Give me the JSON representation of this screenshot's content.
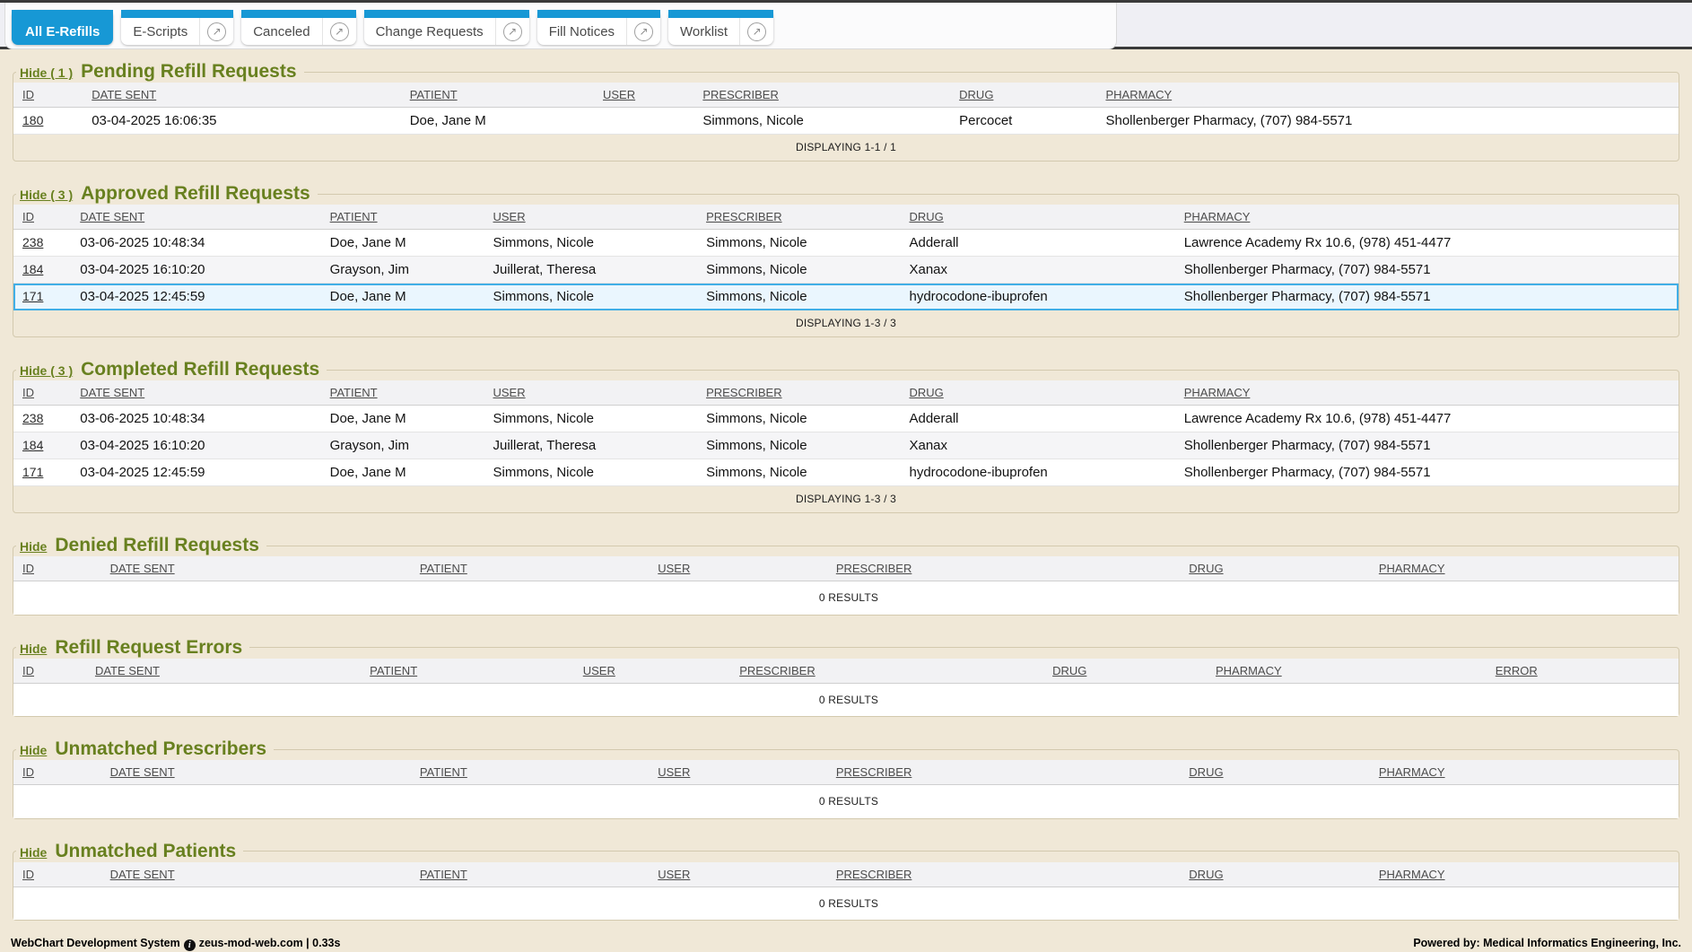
{
  "tab_bar": {
    "tabs": [
      {
        "label": "All E-Refills",
        "active": true,
        "external_icon": false
      },
      {
        "label": "E-Scripts",
        "active": false,
        "external_icon": true
      },
      {
        "label": "Canceled",
        "active": false,
        "external_icon": true
      },
      {
        "label": "Change Requests",
        "active": false,
        "external_icon": true
      },
      {
        "label": "Fill Notices",
        "active": false,
        "external_icon": true
      },
      {
        "label": "Worklist",
        "active": false,
        "external_icon": true
      }
    ],
    "external_icon_glyph": "↗"
  },
  "sections": [
    {
      "id": "pending-refill-requests",
      "hide_label": "Hide ( 1 )",
      "title": "Pending Refill Requests",
      "columns": [
        "ID",
        "DATE SENT",
        "PATIENT",
        "USER",
        "PRESCRIBER",
        "DRUG",
        "PHARMACY"
      ],
      "col_widths": [
        4.7,
        19.1,
        11.6,
        6.0,
        15.4,
        8.8,
        34.4
      ],
      "rows": [
        [
          "180",
          "03-04-2025 16:06:35",
          "Doe, Jane M",
          "",
          "Simmons, Nicole",
          "Percocet",
          "Shollenberger Pharmacy, (707) 984-5571"
        ]
      ],
      "selected_index": -1,
      "footer_text": "DISPLAYING 1-1 / 1"
    },
    {
      "id": "approved-refill-requests",
      "hide_label": "Hide ( 3 )",
      "title": "Approved Refill Requests",
      "columns": [
        "ID",
        "DATE SENT",
        "PATIENT",
        "USER",
        "PRESCRIBER",
        "DRUG",
        "PHARMACY"
      ],
      "col_widths": [
        4.0,
        15.0,
        9.8,
        12.8,
        12.2,
        16.5,
        29.7
      ],
      "rows": [
        [
          "238",
          "03-06-2025 10:48:34",
          "Doe, Jane M",
          "Simmons, Nicole",
          "Simmons, Nicole",
          "Adderall",
          "Lawrence Academy Rx 10.6, (978) 451-4477"
        ],
        [
          "184",
          "03-04-2025 16:10:20",
          "Grayson, Jim",
          "Juillerat, Theresa",
          "Simmons, Nicole",
          "Xanax",
          "Shollenberger Pharmacy, (707) 984-5571"
        ],
        [
          "171",
          "03-04-2025 12:45:59",
          "Doe, Jane M",
          "Simmons, Nicole",
          "Simmons, Nicole",
          "hydrocodone-ibuprofen",
          "Shollenberger Pharmacy, (707) 984-5571"
        ]
      ],
      "selected_index": 2,
      "footer_text": "DISPLAYING 1-3 / 3"
    },
    {
      "id": "completed-refill-requests",
      "hide_label": "Hide ( 3 )",
      "title": "Completed Refill Requests",
      "columns": [
        "ID",
        "DATE SENT",
        "PATIENT",
        "USER",
        "PRESCRIBER",
        "DRUG",
        "PHARMACY"
      ],
      "col_widths": [
        4.0,
        15.0,
        9.8,
        12.8,
        12.2,
        16.5,
        29.7
      ],
      "rows": [
        [
          "238",
          "03-06-2025 10:48:34",
          "Doe, Jane M",
          "Simmons, Nicole",
          "Simmons, Nicole",
          "Adderall",
          "Lawrence Academy Rx 10.6, (978) 451-4477"
        ],
        [
          "184",
          "03-04-2025 16:10:20",
          "Grayson, Jim",
          "Juillerat, Theresa",
          "Simmons, Nicole",
          "Xanax",
          "Shollenberger Pharmacy, (707) 984-5571"
        ],
        [
          "171",
          "03-04-2025 12:45:59",
          "Doe, Jane M",
          "Simmons, Nicole",
          "Simmons, Nicole",
          "hydrocodone-ibuprofen",
          "Shollenberger Pharmacy, (707) 984-5571"
        ]
      ],
      "selected_index": -1,
      "footer_text": "DISPLAYING 1-3 / 3"
    },
    {
      "id": "denied-refill-requests",
      "hide_label": "Hide",
      "title": "Denied Refill Requests",
      "columns": [
        "ID",
        "DATE SENT",
        "PATIENT",
        "USER",
        "PRESCRIBER",
        "DRUG",
        "PHARMACY"
      ],
      "col_widths": [
        5.8,
        18.6,
        14.3,
        10.7,
        21.2,
        11.4,
        18.0
      ],
      "rows": [],
      "selected_index": -1,
      "footer_text": "0 RESULTS"
    },
    {
      "id": "refill-request-errors",
      "hide_label": "Hide",
      "title": "Refill Request Errors",
      "columns": [
        "ID",
        "DATE SENT",
        "PATIENT",
        "USER",
        "PRESCRIBER",
        "DRUG",
        "PHARMACY",
        "ERROR"
      ],
      "col_widths": [
        4.9,
        16.5,
        12.8,
        9.4,
        18.8,
        9.8,
        16.8,
        11.0
      ],
      "rows": [],
      "selected_index": -1,
      "footer_text": "0 RESULTS"
    },
    {
      "id": "unmatched-prescribers",
      "hide_label": "Hide",
      "title": "Unmatched Prescribers",
      "columns": [
        "ID",
        "DATE SENT",
        "PATIENT",
        "USER",
        "PRESCRIBER",
        "DRUG",
        "PHARMACY"
      ],
      "col_widths": [
        5.8,
        18.6,
        14.3,
        10.7,
        21.2,
        11.4,
        18.0
      ],
      "rows": [],
      "selected_index": -1,
      "footer_text": "0 RESULTS"
    },
    {
      "id": "unmatched-patients",
      "hide_label": "Hide",
      "title": "Unmatched Patients",
      "columns": [
        "ID",
        "DATE SENT",
        "PATIENT",
        "USER",
        "PRESCRIBER",
        "DRUG",
        "PHARMACY"
      ],
      "col_widths": [
        5.8,
        18.6,
        14.3,
        10.7,
        21.2,
        11.4,
        18.0
      ],
      "rows": [],
      "selected_index": -1,
      "footer_text": "0 RESULTS"
    }
  ],
  "footer": {
    "system_label": "WebChart Development System",
    "info_icon_glyph": "i",
    "host": "zeus-mod-web.com | 0.33s",
    "powered_by": "Powered by: Medical Informatics Engineering, Inc."
  },
  "colors": {
    "accent_blue": "#1798d5",
    "section_green": "#68801f",
    "selected_row_border": "#41aee6",
    "selected_row_bg": "#eaf6fe",
    "page_bg": "#f0e8d7",
    "top_bar_dark": "#3a3a3a"
  }
}
